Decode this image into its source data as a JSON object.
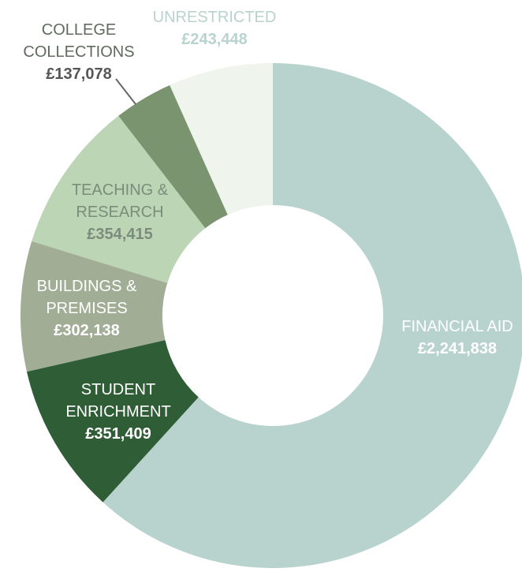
{
  "chart_data": {
    "type": "donut",
    "categories": [
      "FINANCIAL AID",
      "STUDENT ENRICHMENT",
      "BUILDINGS & PREMISES",
      "TEACHING & RESEARCH",
      "COLLEGE COLLECTIONS",
      "UNRESTRICTED"
    ],
    "values": [
      2241838,
      351409,
      302138,
      354415,
      137078,
      243448
    ],
    "value_labels": [
      "£2,241,838",
      "£351,409",
      "£302,138",
      "£354,415",
      "£137,078",
      "£243,448"
    ],
    "colors": [
      "#b8d3cd",
      "#2f5e36",
      "#a2ad96",
      "#bcd5b4",
      "#7a9470",
      "#eff4ec"
    ]
  }
}
